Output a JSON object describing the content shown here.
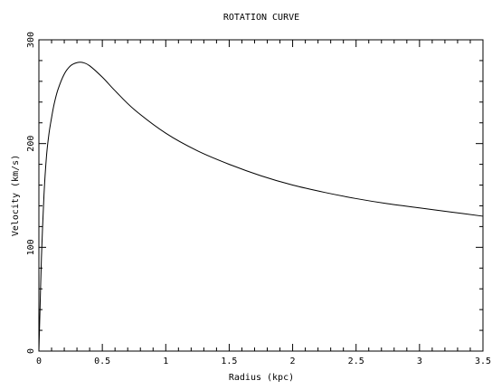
{
  "chart_data": {
    "type": "line",
    "title": "ROTATION CURVE",
    "xlabel": "Radius (kpc)",
    "ylabel": "Velocity (km/s)",
    "xlim": [
      0,
      3.5
    ],
    "ylim": [
      0,
      300
    ],
    "x_ticks": [
      0,
      0.5,
      1,
      1.5,
      2,
      2.5,
      3,
      3.5
    ],
    "x_tick_labels": [
      "0",
      "0.5",
      "1",
      "1.5",
      "2",
      "2.5",
      "3",
      "3.5"
    ],
    "y_ticks": [
      0,
      100,
      200,
      300
    ],
    "y_tick_labels": [
      "0",
      "100",
      "200",
      "300"
    ],
    "grid": false,
    "legend": "none",
    "series": [
      {
        "color": "#000000",
        "x": [
          0,
          0.01,
          0.02,
          0.04,
          0.06,
          0.08,
          0.1,
          0.12,
          0.15,
          0.2,
          0.25,
          0.3,
          0.35,
          0.4,
          0.5,
          0.6,
          0.75,
          1,
          1.25,
          1.5,
          1.75,
          2,
          2.25,
          2.5,
          2.75,
          3,
          3.25,
          3.5
        ],
        "y": [
          0,
          45,
          90,
          150,
          188,
          210,
          225,
          238,
          252,
          267,
          275,
          278,
          278,
          275,
          264,
          251,
          233,
          210,
          193,
          180,
          169,
          160,
          153,
          147,
          142,
          138,
          134,
          130
        ]
      }
    ]
  }
}
